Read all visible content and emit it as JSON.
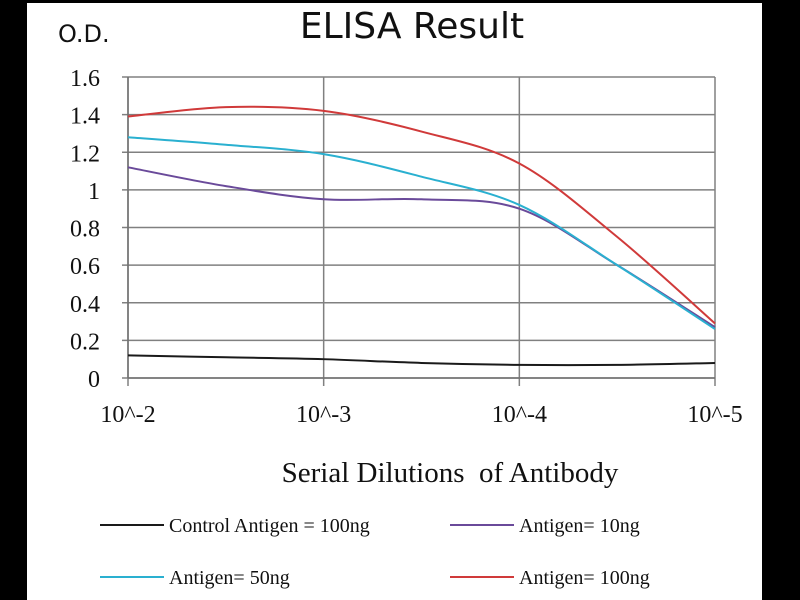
{
  "chart_data": {
    "type": "line",
    "title": "ELISA Result",
    "ylabel": "O.D.",
    "xlabel": "Serial Dilutions  of Antibody",
    "x": [
      -2,
      -2.5,
      -3,
      -3.5,
      -4,
      -4.5,
      -5
    ],
    "xticks": [
      {
        "value": -2,
        "label": "10^-2"
      },
      {
        "value": -3,
        "label": "10^-3"
      },
      {
        "value": -4,
        "label": "10^-4"
      },
      {
        "value": -5,
        "label": "10^-5"
      }
    ],
    "yticks": [
      {
        "value": 0,
        "label": "0"
      },
      {
        "value": 0.2,
        "label": "0.2"
      },
      {
        "value": 0.4,
        "label": "0.4"
      },
      {
        "value": 0.6,
        "label": "0.6"
      },
      {
        "value": 0.8,
        "label": "0.8"
      },
      {
        "value": 1.0,
        "label": "1"
      },
      {
        "value": 1.2,
        "label": "1.2"
      },
      {
        "value": 1.4,
        "label": "1.4"
      },
      {
        "value": 1.6,
        "label": "1.6"
      }
    ],
    "xlim": [
      -2,
      -5
    ],
    "ylim": [
      0,
      1.6
    ],
    "grid": true,
    "legend_placement": "bottom",
    "series": [
      {
        "name": "Control Antigen = 100ng",
        "color": "#1a1a1a",
        "values": [
          0.12,
          0.11,
          0.1,
          0.08,
          0.07,
          0.07,
          0.08
        ]
      },
      {
        "name": "Antigen= 10ng",
        "color": "#6a4a9a",
        "values": [
          1.12,
          1.02,
          0.95,
          0.95,
          0.9,
          0.6,
          0.27
        ]
      },
      {
        "name": "Antigen= 50ng",
        "color": "#2ab0d0",
        "values": [
          1.28,
          1.24,
          1.19,
          1.07,
          0.92,
          0.6,
          0.26
        ]
      },
      {
        "name": "Antigen= 100ng",
        "color": "#d03a3a",
        "values": [
          1.39,
          1.44,
          1.42,
          1.31,
          1.14,
          0.75,
          0.29
        ]
      }
    ]
  }
}
